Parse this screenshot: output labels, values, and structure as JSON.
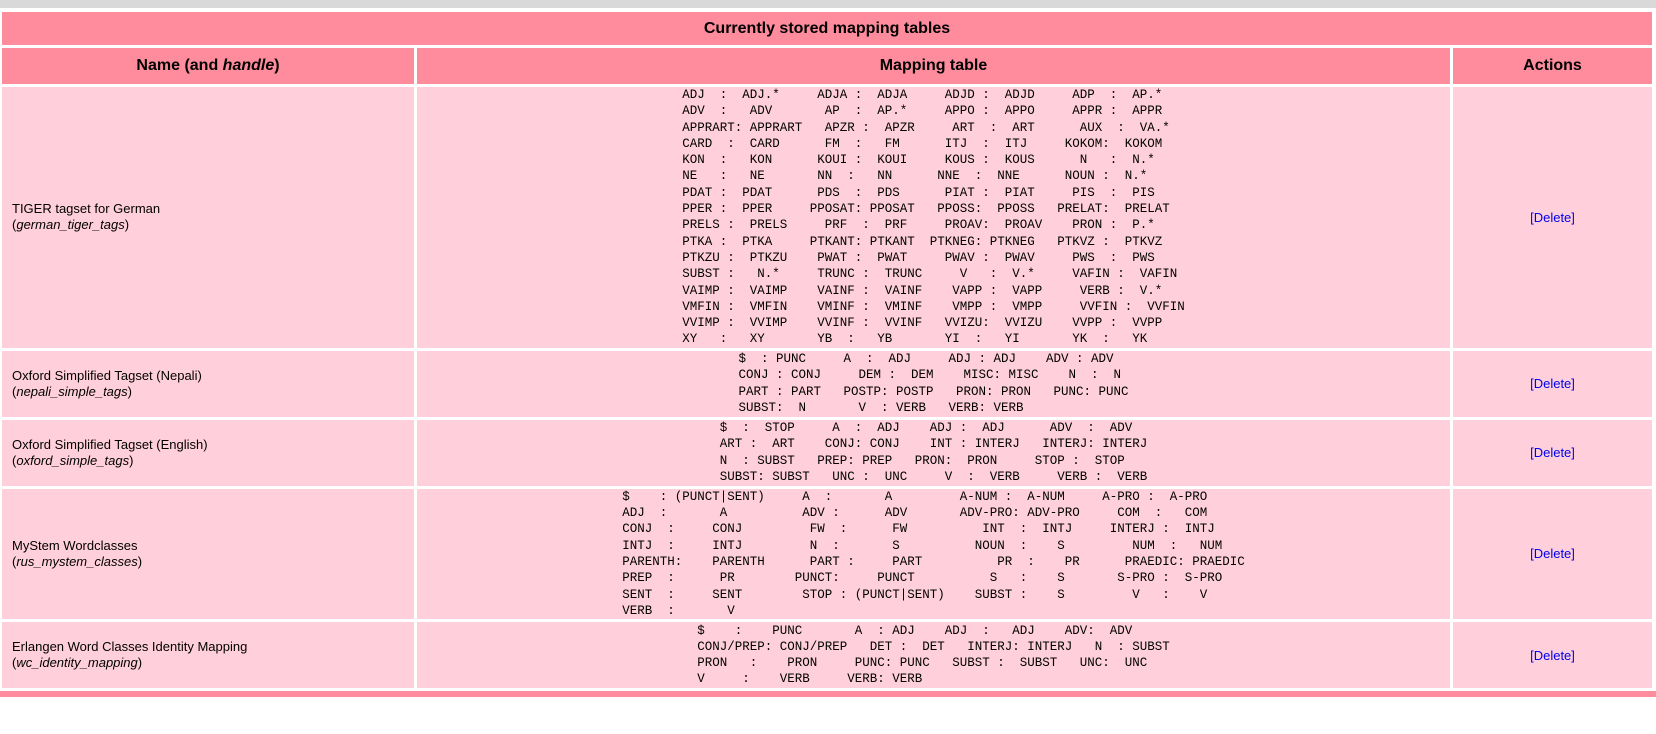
{
  "table_caption": "Currently stored mapping tables",
  "headers": {
    "name_prefix": "Name (and ",
    "name_handle_word": "handle",
    "name_suffix": ")",
    "mapping": "Mapping table",
    "actions": "Actions"
  },
  "rows": [
    {
      "name": "TIGER tagset for German",
      "handle": "german_tiger_tags",
      "action": "[Delete]",
      "mapping_text": "ADJ  :  ADJ.*     ADJA :  ADJA     ADJD :  ADJD     ADP  :  AP.*\nADV  :   ADV       AP  :  AP.*     APPO :  APPO     APPR :  APPR\nAPPRART: APPRART   APZR :  APZR     ART  :  ART      AUX  :  VA.*\nCARD  :  CARD      FM  :   FM      ITJ  :  ITJ     KOKOM:  KOKOM\nKON  :   KON      KOUI :  KOUI     KOUS :  KOUS      N   :  N.*\nNE   :   NE       NN  :   NN      NNE  :  NNE      NOUN :  N.*\nPDAT :  PDAT      PDS  :  PDS      PIAT :  PIAT     PIS  :  PIS\nPPER :  PPER     PPOSAT: PPOSAT   PPOSS:  PPOSS   PRELAT:  PRELAT\nPRELS :  PRELS     PRF  :  PRF     PROAV:  PROAV    PRON :  P.*\nPTKA :  PTKA     PTKANT: PTKANT  PTKNEG: PTKNEG   PTKVZ :  PTKVZ\nPTKZU :  PTKZU    PWAT :  PWAT     PWAV :  PWAV     PWS  :  PWS\nSUBST :   N.*     TRUNC :  TRUNC     V   :  V.*     VAFIN :  VAFIN\nVAIMP :  VAIMP    VAINF :  VAINF    VAPP :  VAPP     VERB :  V.*\nVMFIN :  VMFIN    VMINF :  VMINF    VMPP :  VMPP     VVFIN :  VVFIN\nVVIMP :  VVIMP    VVINF :  VVINF   VVIZU:  VVIZU    VVPP :  VVPP\nXY   :   XY       YB  :   YB       YI  :   YI       YK  :   YK"
    },
    {
      "name": "Oxford Simplified Tagset (Nepali)",
      "handle": "nepali_simple_tags",
      "action": "[Delete]",
      "mapping_text": "$  : PUNC     A  :  ADJ     ADJ : ADJ    ADV : ADV\nCONJ : CONJ     DEM :  DEM    MISC: MISC    N  :  N\nPART : PART   POSTP: POSTP   PRON: PRON   PUNC: PUNC\nSUBST:  N       V  : VERB   VERB: VERB"
    },
    {
      "name": "Oxford Simplified Tagset (English)",
      "handle": "oxford_simple_tags",
      "action": "[Delete]",
      "mapping_text": "$  :  STOP     A  :  ADJ    ADJ :  ADJ      ADV  :  ADV\nART :  ART    CONJ: CONJ    INT : INTERJ   INTERJ: INTERJ\nN  : SUBST   PREP: PREP   PRON:  PRON     STOP :  STOP\nSUBST: SUBST   UNC :  UNC     V  :  VERB     VERB :  VERB"
    },
    {
      "name": "MyStem Wordclasses",
      "handle": "rus_mystem_classes",
      "action": "[Delete]",
      "mapping_text": "$    : (PUNCT|SENT)     A  :       A         A-NUM :  A-NUM     A-PRO :  A-PRO\nADJ  :       A          ADV :      ADV       ADV-PRO: ADV-PRO     COM  :   COM\nCONJ  :     CONJ         FW  :      FW          INT  :  INTJ     INTERJ :  INTJ\nINTJ  :     INTJ         N  :       S          NOUN  :    S         NUM  :   NUM\nPARENTH:    PARENTH      PART :     PART          PR  :    PR      PRAEDIC: PRAEDIC\nPREP  :      PR        PUNCT:     PUNCT          S   :    S       S-PRO :  S-PRO\nSENT  :     SENT        STOP : (PUNCT|SENT)    SUBST :    S         V   :    V\nVERB  :       V"
    },
    {
      "name": "Erlangen Word Classes Identity Mapping",
      "handle": "wc_identity_mapping",
      "action": "[Delete]",
      "mapping_text": "$    :    PUNC       A  : ADJ    ADJ  :   ADJ    ADV:  ADV\nCONJ/PREP: CONJ/PREP   DET :  DET   INTERJ: INTERJ   N  : SUBST\nPRON   :    PRON     PUNC: PUNC   SUBST :  SUBST   UNC:  UNC\nV     :    VERB     VERB: VERB"
    }
  ]
}
